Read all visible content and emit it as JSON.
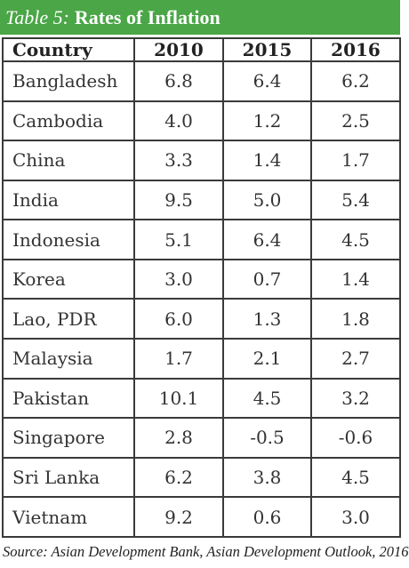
{
  "title": {
    "prefix": "Table 5:",
    "main": "Rates of Inflation"
  },
  "table": {
    "headers": [
      "Country",
      "2010",
      "2015",
      "2016"
    ],
    "rows": [
      [
        "Bangladesh",
        "6.8",
        "6.4",
        "6.2"
      ],
      [
        "Cambodia",
        "4.0",
        "1.2",
        "2.5"
      ],
      [
        "China",
        "3.3",
        "1.4",
        "1.7"
      ],
      [
        "India",
        "9.5",
        "5.0",
        "5.4"
      ],
      [
        "Indonesia",
        "5.1",
        "6.4",
        "4.5"
      ],
      [
        "Korea",
        "3.0",
        "0.7",
        "1.4"
      ],
      [
        "Lao, PDR",
        "6.0",
        "1.3",
        "1.8"
      ],
      [
        "Malaysia",
        "1.7",
        "2.1",
        "2.7"
      ],
      [
        "Pakistan",
        "10.1",
        "4.5",
        "3.2"
      ],
      [
        "Singapore",
        "2.8",
        "-0.5",
        "-0.6"
      ],
      [
        "Sri Lanka",
        "6.2",
        "3.8",
        "4.5"
      ],
      [
        "Vietnam",
        "9.2",
        "0.6",
        "3.0"
      ]
    ]
  },
  "source": "Source: Asian Development Bank, Asian Development Outlook, 2016",
  "colors": {
    "title_bar": "#4aa646",
    "title_text": "#ffffff",
    "border": "#3a3a3a"
  }
}
